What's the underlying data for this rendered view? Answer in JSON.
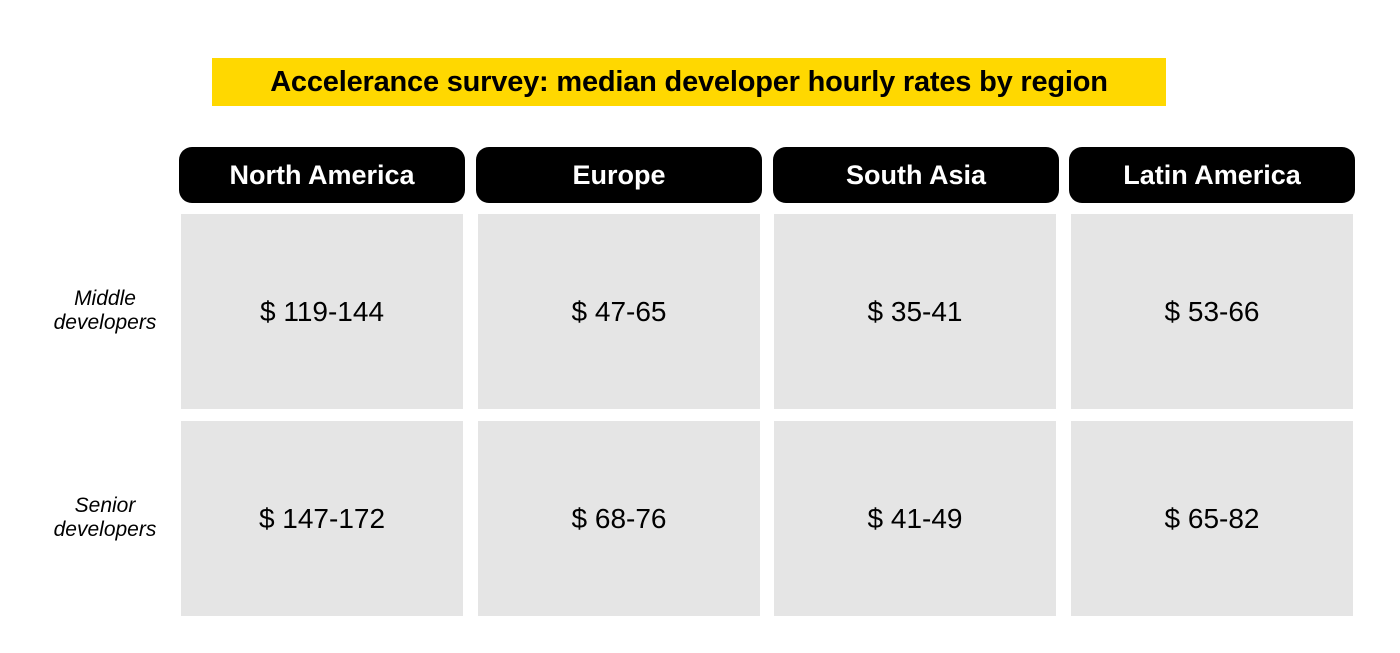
{
  "colors": {
    "title_highlight": "#FFD800",
    "header_bg": "#000000",
    "header_text": "#FFFFFF",
    "cell_bg": "#E5E5E5"
  },
  "chart_data": {
    "type": "table",
    "title": "Accelerance survey: median developer hourly rates by region",
    "columns": [
      "North America",
      "Europe",
      "South Asia",
      "Latin America"
    ],
    "rows": [
      {
        "label_line1": "Middle",
        "label_line2": "developers",
        "values": [
          "$ 119-144",
          "$ 47-65",
          "$ 35-41",
          "$ 53-66"
        ]
      },
      {
        "label_line1": "Senior",
        "label_line2": "developers",
        "values": [
          "$ 147-172",
          "$ 68-76",
          "$ 41-49",
          "$ 65-82"
        ]
      }
    ]
  }
}
